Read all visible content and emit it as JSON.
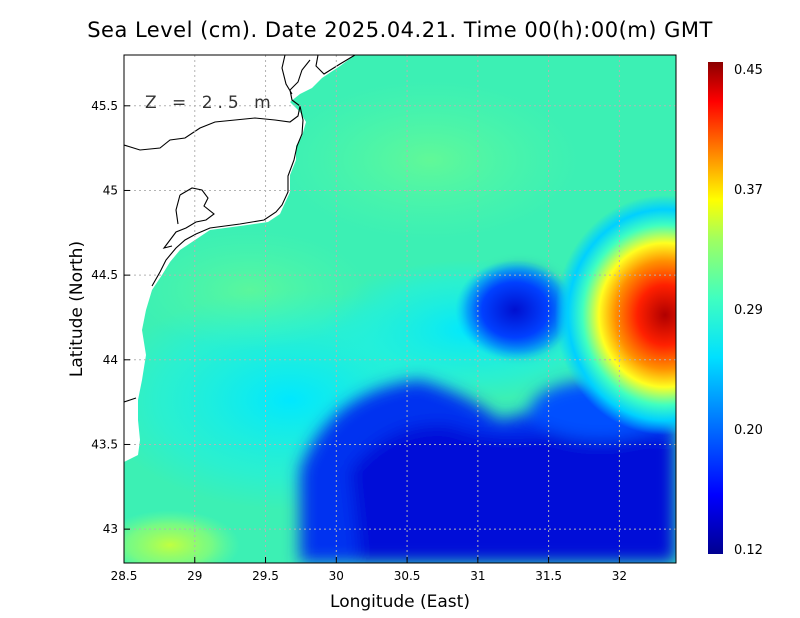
{
  "title": "Sea Level (cm). Date 2025.04.21. Time 00(h):00(m) GMT",
  "depth_label": "Z = 2.5 m",
  "x_axis": {
    "label": "Longitude (East)",
    "ticks": [
      "28.5",
      "29",
      "29.5",
      "30",
      "30.5",
      "31",
      "31.5",
      "32"
    ],
    "range": [
      28.5,
      32.4
    ]
  },
  "y_axis": {
    "label": "Latitude (North)",
    "ticks": [
      "43",
      "43.5",
      "44",
      "44.5",
      "45",
      "45.5"
    ],
    "range": [
      42.8,
      45.8
    ]
  },
  "colorbar": {
    "labels": [
      "0.45",
      "0.37",
      "0.29",
      "0.20",
      "0.12"
    ],
    "min": 0.12,
    "max": 0.45,
    "colors": [
      "#000090",
      "#0000ff",
      "#0080ff",
      "#00e0ff",
      "#40ffc0",
      "#a0ff60",
      "#ffff00",
      "#ff8000",
      "#ff0000",
      "#8b0000"
    ]
  },
  "fields": {
    "ocean_base_color": "#3cf0b4",
    "land_color": "#ffffff",
    "coastline_color": "#000000",
    "grid_color": "#b4b4b4"
  }
}
